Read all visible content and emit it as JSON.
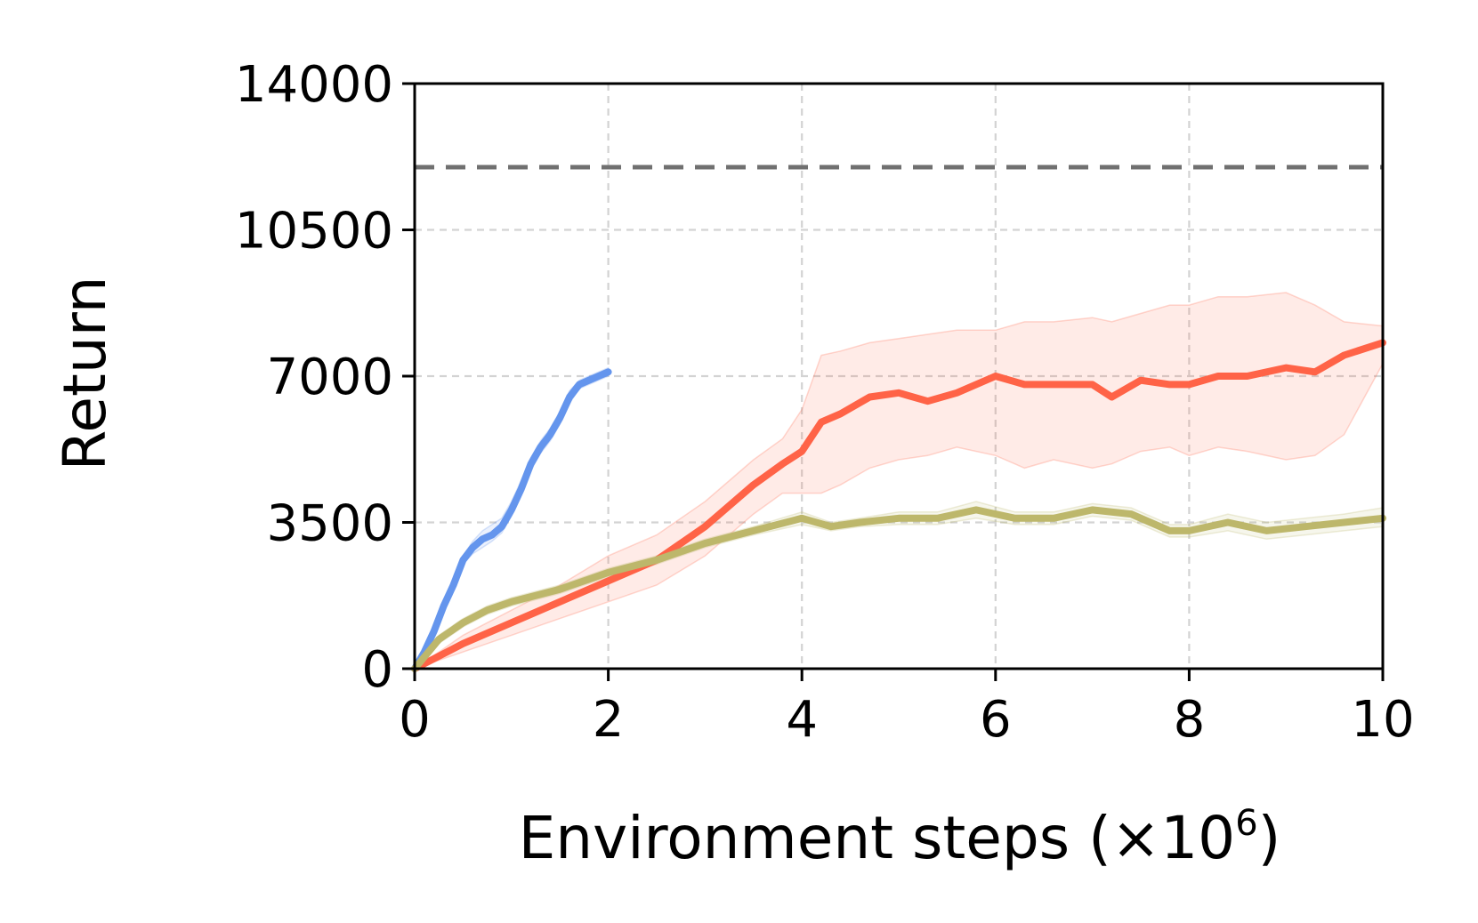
{
  "chart_data": {
    "type": "line",
    "title": "",
    "xlabel_main": "Environment steps (×10",
    "xlabel_sup": "6",
    "xlabel_close": ")",
    "ylabel": "Return",
    "xlim": [
      0,
      10
    ],
    "ylim": [
      0,
      14000
    ],
    "xticks": [
      0,
      2,
      4,
      6,
      8,
      10
    ],
    "xtick_labels": [
      "0",
      "2",
      "4",
      "6",
      "8",
      "10"
    ],
    "yticks": [
      0,
      3500,
      7000,
      10500,
      14000
    ],
    "ytick_labels": [
      "0",
      "3500",
      "7000",
      "10500",
      "14000"
    ],
    "grid": true,
    "legend": "none",
    "reference_line": {
      "y": 12000,
      "color": "#707070",
      "style": "dashed"
    },
    "series": [
      {
        "color": "#6495ed",
        "x": [
          0,
          0.1,
          0.2,
          0.3,
          0.4,
          0.5,
          0.6,
          0.7,
          0.8,
          0.9,
          1.0,
          1.1,
          1.2,
          1.3,
          1.4,
          1.5,
          1.6,
          1.7,
          1.8,
          1.9,
          2.0
        ],
        "y": [
          0,
          400,
          900,
          1500,
          2000,
          2600,
          2900,
          3100,
          3200,
          3400,
          3800,
          4300,
          4900,
          5300,
          5600,
          6000,
          6500,
          6800,
          6900,
          7000,
          7100
        ],
        "band_low": [
          0,
          350,
          850,
          1400,
          1900,
          2500,
          2750,
          2900,
          3050,
          3250,
          3650,
          4150,
          4750,
          5150,
          5450,
          5850,
          6350,
          6700,
          6800,
          6900,
          7000
        ],
        "band_high": [
          0,
          450,
          950,
          1600,
          2100,
          2700,
          3050,
          3300,
          3450,
          3600,
          4000,
          4500,
          5050,
          5450,
          5750,
          6150,
          6650,
          6900,
          7000,
          7100,
          7200
        ]
      },
      {
        "color": "#ff6347",
        "x": [
          0,
          0.5,
          1.0,
          1.5,
          2.0,
          2.5,
          3.0,
          3.5,
          3.8,
          4.0,
          4.2,
          4.4,
          4.7,
          5.0,
          5.3,
          5.6,
          6.0,
          6.3,
          6.6,
          7.0,
          7.2,
          7.5,
          7.8,
          8.0,
          8.3,
          8.6,
          9.0,
          9.3,
          9.6,
          10.0
        ],
        "y": [
          0,
          600,
          1100,
          1600,
          2100,
          2600,
          3400,
          4400,
          4900,
          5200,
          5900,
          6100,
          6500,
          6600,
          6400,
          6600,
          7000,
          6800,
          6800,
          6800,
          6500,
          6900,
          6800,
          6800,
          7000,
          7000,
          7200,
          7100,
          7500,
          7800
        ],
        "band_low": [
          0,
          400,
          800,
          1200,
          1600,
          2000,
          2700,
          3700,
          4200,
          4200,
          4200,
          4400,
          4800,
          5000,
          5100,
          5300,
          5100,
          4800,
          5000,
          4800,
          4900,
          5200,
          5300,
          5100,
          5300,
          5200,
          5000,
          5100,
          5600,
          7300
        ],
        "band_high": [
          0,
          800,
          1400,
          2000,
          2700,
          3200,
          4000,
          5000,
          5500,
          6200,
          7500,
          7600,
          7800,
          7900,
          8000,
          8100,
          8100,
          8300,
          8300,
          8400,
          8300,
          8500,
          8700,
          8700,
          8900,
          8900,
          9000,
          8700,
          8300,
          8200
        ]
      },
      {
        "color": "#bdb76b",
        "x": [
          0,
          0.25,
          0.5,
          0.75,
          1.0,
          1.5,
          2.0,
          2.5,
          3.0,
          3.5,
          4.0,
          4.3,
          4.6,
          5.0,
          5.4,
          5.8,
          6.2,
          6.6,
          7.0,
          7.4,
          7.8,
          8.0,
          8.4,
          8.8,
          9.2,
          9.6,
          10.0
        ],
        "y": [
          0,
          700,
          1100,
          1400,
          1600,
          1900,
          2300,
          2600,
          3000,
          3300,
          3600,
          3400,
          3500,
          3600,
          3600,
          3800,
          3600,
          3600,
          3800,
          3700,
          3300,
          3300,
          3500,
          3300,
          3400,
          3500,
          3600
        ],
        "band_low": [
          0,
          600,
          1000,
          1300,
          1500,
          1800,
          2200,
          2500,
          2900,
          3200,
          3450,
          3300,
          3400,
          3450,
          3450,
          3600,
          3450,
          3450,
          3650,
          3550,
          3150,
          3150,
          3300,
          3100,
          3200,
          3300,
          3400
        ],
        "band_high": [
          0,
          800,
          1200,
          1500,
          1700,
          2000,
          2400,
          2700,
          3100,
          3400,
          3750,
          3500,
          3600,
          3750,
          3750,
          4000,
          3750,
          3750,
          3950,
          3850,
          3450,
          3450,
          3700,
          3500,
          3600,
          3700,
          3850
        ]
      }
    ]
  }
}
